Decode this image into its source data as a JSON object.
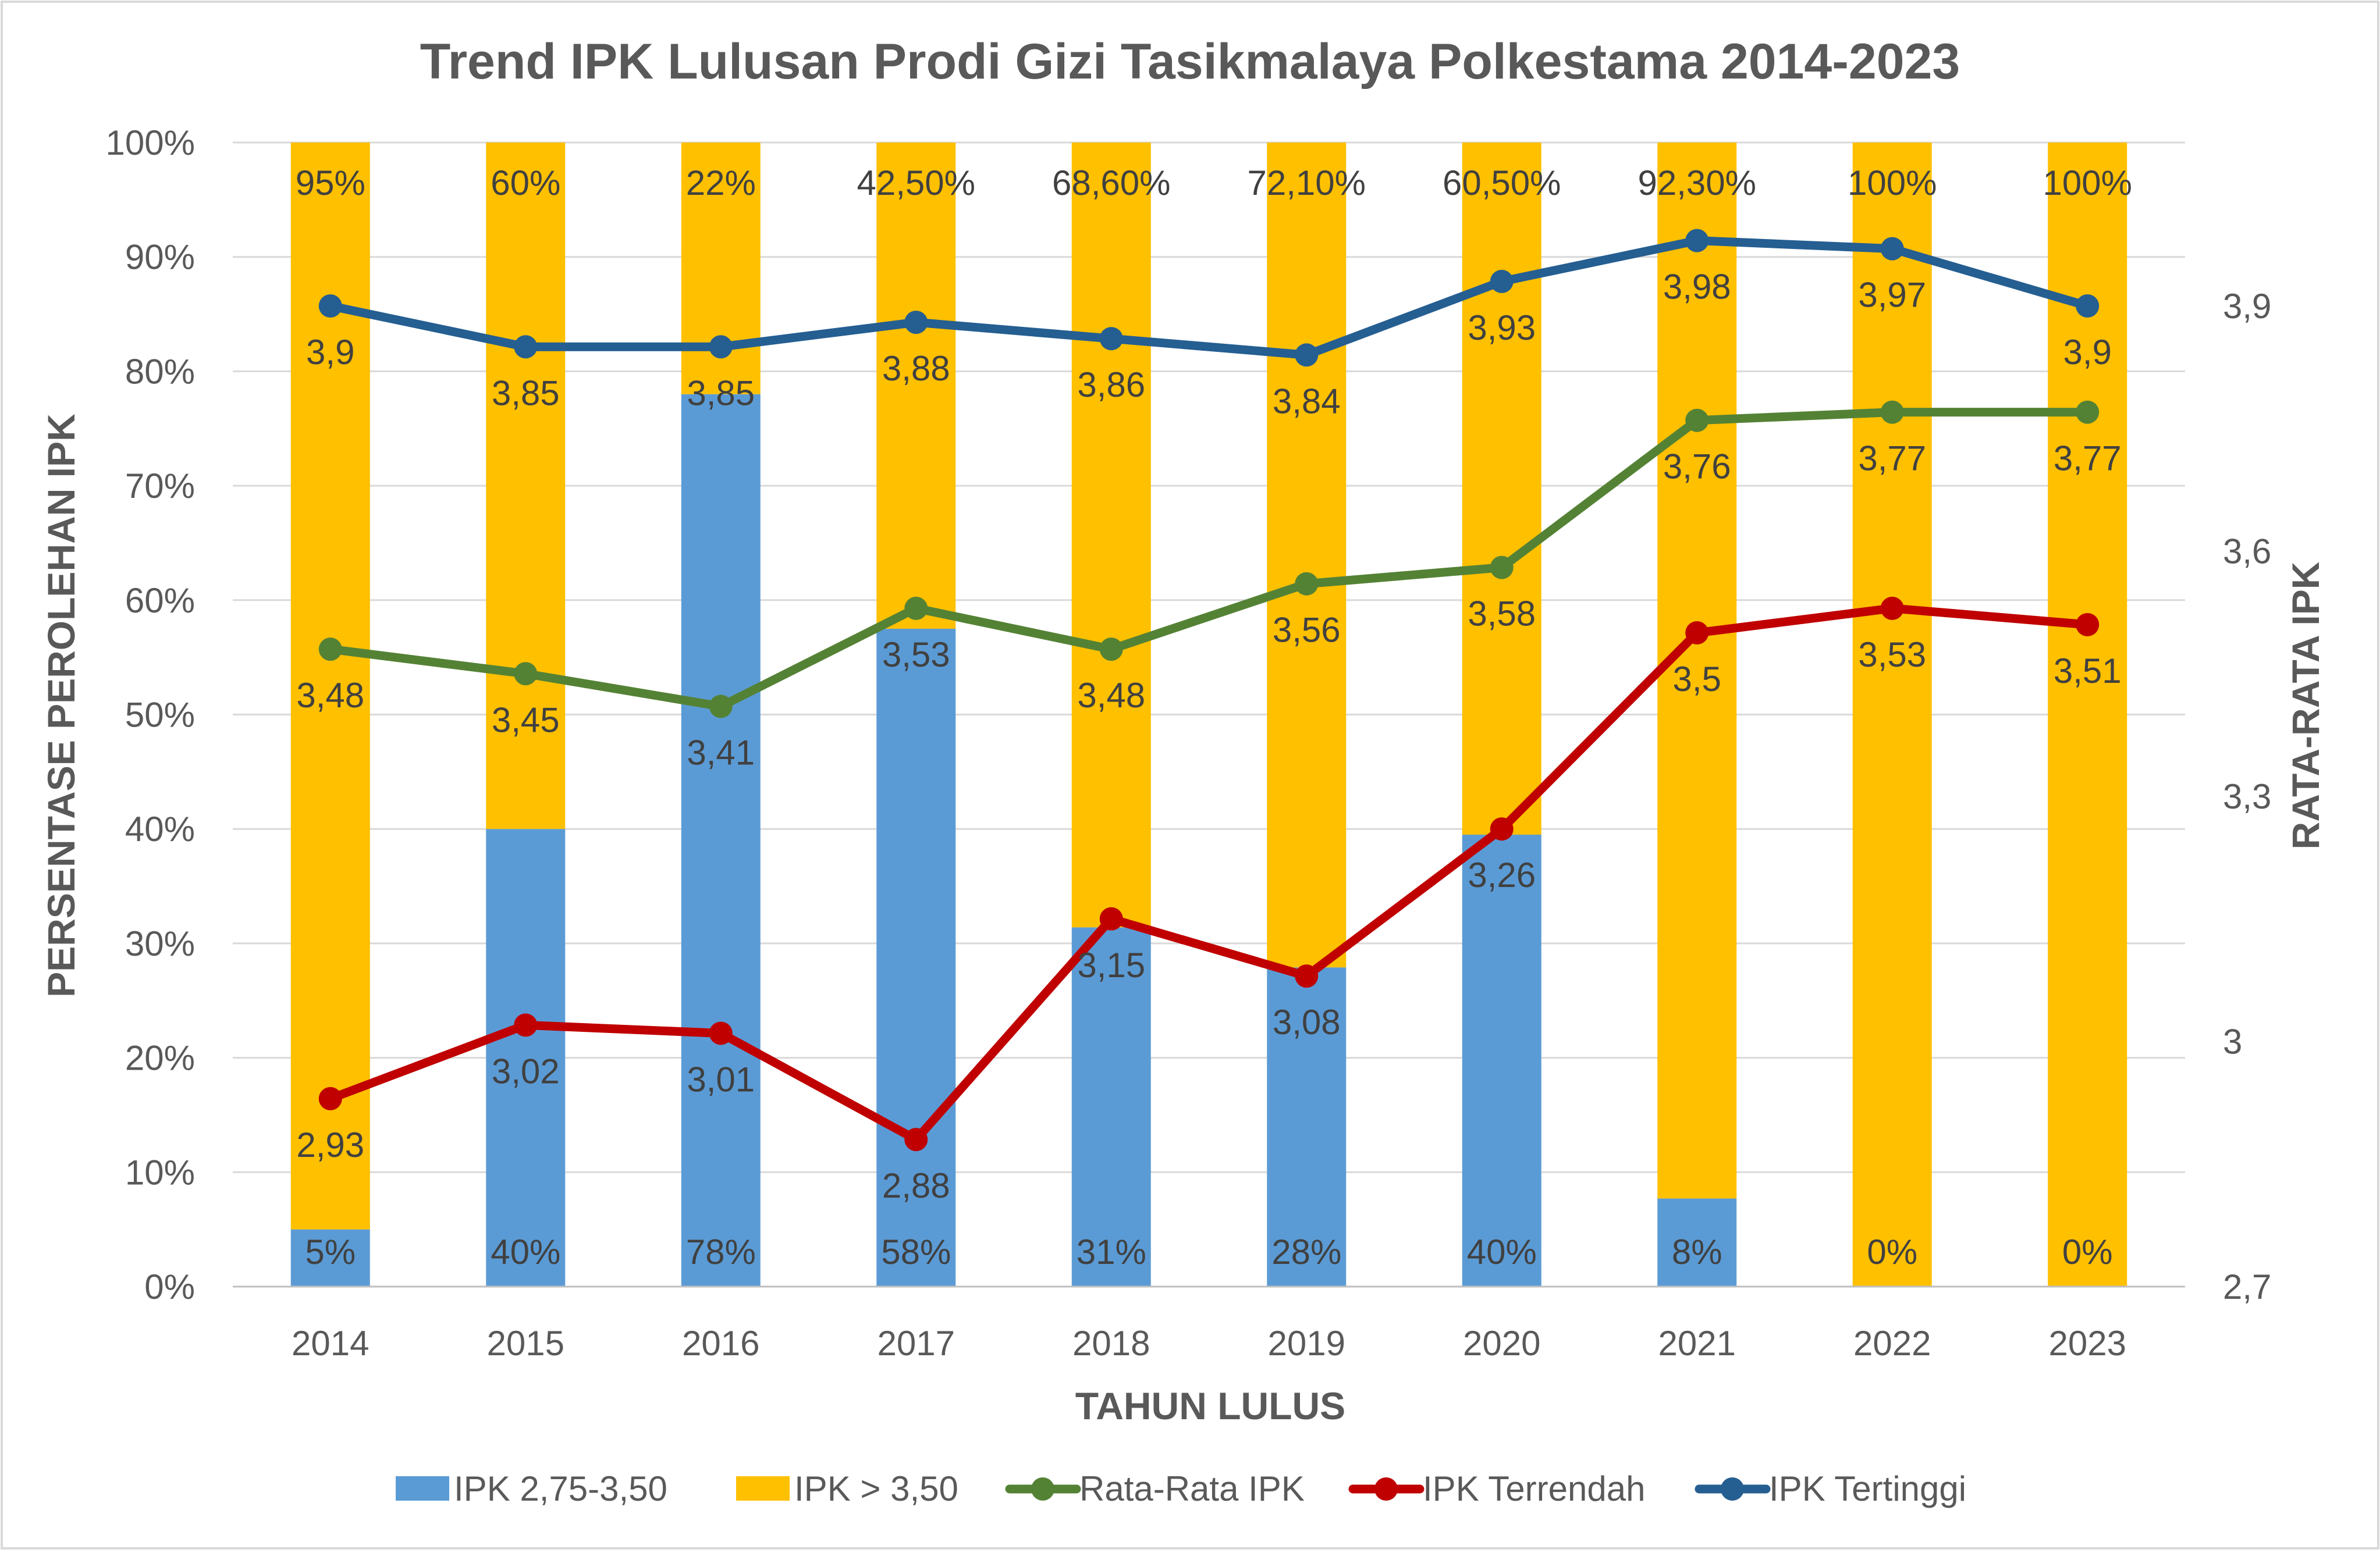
{
  "chart_data": {
    "type": "combo-stacked-bar-line",
    "title": "Trend IPK Lulusan Prodi Gizi Tasikmalaya Polkestama 2014-2023",
    "xlabel": "TAHUN LULUS",
    "ylabel_left": "PERSENTASE PEROLEHAN IPK",
    "ylabel_right": "RATA-RATA IPK",
    "categories": [
      "2014",
      "2015",
      "2016",
      "2017",
      "2018",
      "2019",
      "2020",
      "2021",
      "2022",
      "2023"
    ],
    "y_left": {
      "min": 0,
      "max": 100,
      "step": 10,
      "tick_labels": [
        "0%",
        "10%",
        "20%",
        "30%",
        "40%",
        "50%",
        "60%",
        "70%",
        "80%",
        "90%",
        "100%"
      ]
    },
    "y_right": {
      "min": 2.7,
      "max": 4.1,
      "tick_values": [
        2.7,
        3.0,
        3.3,
        3.6,
        3.9
      ],
      "tick_labels": [
        "2,7",
        "3",
        "3,3",
        "3,6",
        "3,9"
      ]
    },
    "bar_series": [
      {
        "name": "IPK 2,75-3,50",
        "color": "#5b9bd5",
        "values": [
          5,
          40,
          78,
          57.5,
          31.4,
          27.9,
          39.5,
          7.7,
          0,
          0
        ],
        "labels": [
          "5%",
          "40%",
          "78%",
          "58%",
          "31%",
          "28%",
          "40%",
          "8%",
          "0%",
          "0%"
        ]
      },
      {
        "name": "IPK > 3,50",
        "color": "#ffc000",
        "values": [
          95,
          60,
          22,
          42.5,
          68.6,
          72.1,
          60.5,
          92.3,
          100,
          100
        ],
        "labels": [
          "95%",
          "60%",
          "22%",
          "42,50%",
          "68,60%",
          "72,10%",
          "60,50%",
          "92,30%",
          "100%",
          "100%"
        ]
      }
    ],
    "line_series": [
      {
        "name": "Rata-Rata IPK",
        "color": "#548235",
        "values": [
          3.48,
          3.45,
          3.41,
          3.53,
          3.48,
          3.56,
          3.58,
          3.76,
          3.77,
          3.77
        ],
        "labels": [
          "3,48",
          "3,45",
          "3,41",
          "3,53",
          "3,48",
          "3,56",
          "3,58",
          "3,76",
          "3,77",
          "3,77"
        ]
      },
      {
        "name": "IPK Terrendah",
        "color": "#c00000",
        "values": [
          2.93,
          3.02,
          3.01,
          2.88,
          3.15,
          3.08,
          3.26,
          3.5,
          3.53,
          3.51
        ],
        "labels": [
          "2,93",
          "3,02",
          "3,01",
          "2,88",
          "3,15",
          "3,08",
          "3,26",
          "3,5",
          "3,53",
          "3,51"
        ]
      },
      {
        "name": "IPK Tertinggi",
        "color": "#255e91",
        "values": [
          3.9,
          3.85,
          3.85,
          3.88,
          3.86,
          3.84,
          3.93,
          3.98,
          3.97,
          3.9
        ],
        "labels": [
          "3,9",
          "3,85",
          "3,85",
          "3,88",
          "3,86",
          "3,84",
          "3,93",
          "3,98",
          "3,97",
          "3,9"
        ]
      }
    ],
    "legend": [
      "IPK 2,75-3,50",
      "IPK > 3,50",
      "Rata-Rata IPK",
      "IPK Terrendah",
      "IPK Tertinggi"
    ],
    "legend_position": "bottom",
    "grid": true
  }
}
